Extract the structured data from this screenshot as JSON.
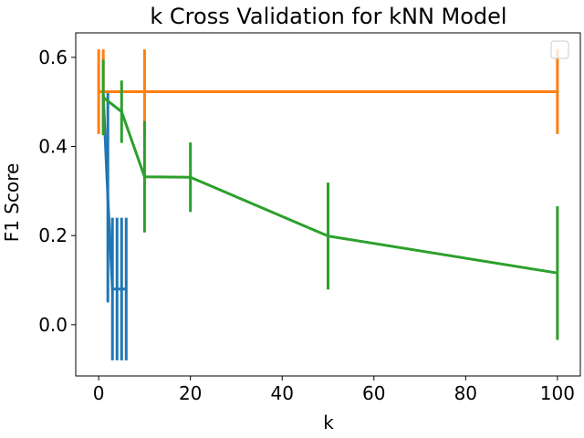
{
  "chart_data": {
    "type": "line",
    "title": "k Cross Validation for kNN Model",
    "xlabel": "k",
    "ylabel": "F1 Score",
    "xlim": [
      -5,
      105
    ],
    "ylim": [
      -0.115,
      0.655
    ],
    "xticks": [
      0,
      20,
      40,
      60,
      80,
      100
    ],
    "yticks": [
      0.0,
      0.2,
      0.4,
      0.6
    ],
    "xtick_labels": [
      "0",
      "20",
      "40",
      "60",
      "80",
      "100"
    ],
    "ytick_labels": [
      "0.0",
      "0.2",
      "0.4",
      "0.6"
    ],
    "grid": false,
    "legend": {
      "placement": "top-right",
      "entries": []
    },
    "error_bars": true,
    "series": [
      {
        "color": "#1f77b4",
        "x": [
          1,
          2,
          3,
          4,
          5,
          6
        ],
        "y": [
          0.515,
          0.285,
          0.08,
          0.08,
          0.08,
          0.08
        ],
        "yerr": [
          0.01,
          0.235,
          0.16,
          0.16,
          0.16,
          0.16
        ]
      },
      {
        "color": "#ff7f0e",
        "x": [
          0,
          1,
          10,
          100
        ],
        "y": [
          0.523,
          0.523,
          0.523,
          0.523
        ],
        "yerr": [
          0.095,
          0.095,
          0.095,
          0.095
        ]
      },
      {
        "color": "#2ca02c",
        "x": [
          1,
          5,
          10,
          20,
          50,
          100
        ],
        "y": [
          0.51,
          0.478,
          0.332,
          0.331,
          0.199,
          0.116
        ],
        "yerr": [
          0.085,
          0.07,
          0.125,
          0.078,
          0.12,
          0.15
        ]
      }
    ]
  }
}
